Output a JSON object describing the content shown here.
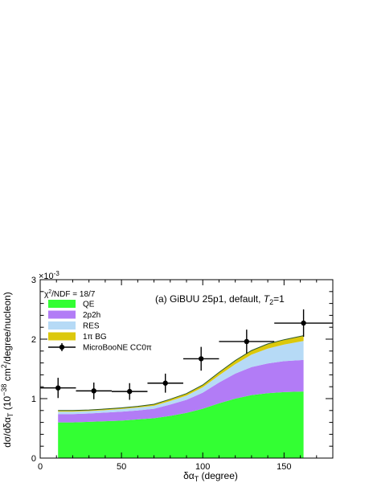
{
  "chart_data": {
    "type": "area",
    "title": "(a) GiBUU 25p1, default, T₂=1",
    "title_parts": {
      "prefix": "(a) GiBUU 25p1, default, ",
      "var": "T",
      "sub": "2",
      "suffix": "=1"
    },
    "chi2": {
      "prefix": "χ",
      "sup": "2",
      "suffix": "/NDF = 18/7"
    },
    "xlabel": {
      "main": "δα",
      "sub": "T",
      "suffix": " (degree)"
    },
    "ylabel": {
      "p1": "dσ/dδα",
      "sub": "T",
      "p2": " (10",
      "sup1": "−38",
      "p3": " cm",
      "sup2": "2",
      "p4": "/degree/nucleon)"
    },
    "exponent": {
      "base": "×10",
      "sup": "-3"
    },
    "xlim": [
      0,
      180
    ],
    "ylim": [
      0,
      3
    ],
    "xticks": [
      0,
      50,
      100,
      150
    ],
    "yticks": [
      0,
      1,
      2,
      3
    ],
    "grid": false,
    "legend_position": "top-left",
    "legend": [
      {
        "label": "QE",
        "color": "#33ff33",
        "kind": "box"
      },
      {
        "label": "2p2h",
        "color": "#b27cf6",
        "kind": "box"
      },
      {
        "label": "RES",
        "color": "#b6daf6",
        "kind": "box"
      },
      {
        "label": "1π BG",
        "color": "#dcc80c",
        "kind": "box"
      },
      {
        "label": "MicroBooNE CC0π",
        "color": "#000000",
        "kind": "marker"
      }
    ],
    "x": [
      11,
      20,
      30,
      40,
      50,
      60,
      70,
      80,
      90,
      100,
      110,
      120,
      130,
      140,
      150,
      162
    ],
    "series": [
      {
        "name": "QE",
        "color": "#33ff33",
        "values": [
          0.6,
          0.6,
          0.61,
          0.62,
          0.63,
          0.65,
          0.67,
          0.71,
          0.76,
          0.83,
          0.92,
          1.0,
          1.06,
          1.09,
          1.11,
          1.12
        ]
      },
      {
        "name": "2p2h",
        "color": "#b27cf6",
        "values": [
          0.14,
          0.14,
          0.14,
          0.145,
          0.15,
          0.15,
          0.16,
          0.19,
          0.22,
          0.27,
          0.35,
          0.42,
          0.47,
          0.5,
          0.52,
          0.53
        ]
      },
      {
        "name": "RES",
        "color": "#b6daf6",
        "values": [
          0.04,
          0.04,
          0.04,
          0.04,
          0.045,
          0.05,
          0.05,
          0.06,
          0.07,
          0.09,
          0.12,
          0.16,
          0.21,
          0.25,
          0.28,
          0.32
        ]
      },
      {
        "name": "1π BG",
        "color": "#dcc80c",
        "values": [
          0.02,
          0.02,
          0.02,
          0.02,
          0.02,
          0.02,
          0.025,
          0.03,
          0.035,
          0.04,
          0.05,
          0.06,
          0.07,
          0.08,
          0.08,
          0.09
        ]
      }
    ],
    "total_line_color": "#2e5a2e",
    "data_points": {
      "name": "MicroBooNE CC0π",
      "x": [
        11,
        33,
        55,
        77,
        99,
        127,
        162
      ],
      "y": [
        1.18,
        1.13,
        1.12,
        1.26,
        1.67,
        1.96,
        2.27
      ],
      "xerr": [
        11,
        11,
        11,
        11,
        11,
        17,
        18
      ],
      "yerr": [
        0.17,
        0.14,
        0.14,
        0.16,
        0.2,
        0.2,
        0.23
      ]
    }
  }
}
